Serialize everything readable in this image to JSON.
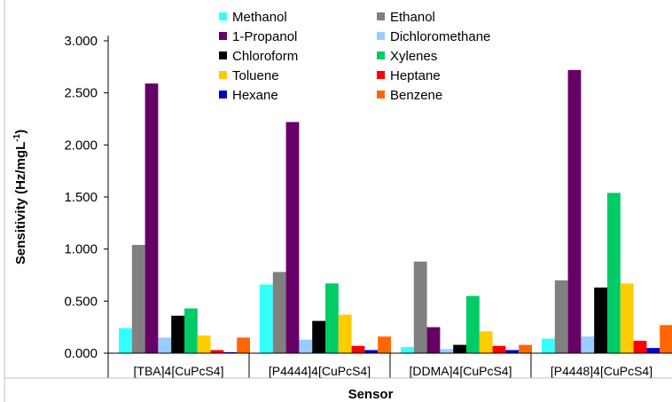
{
  "chart_data": {
    "type": "bar",
    "title": "",
    "xlabel": "Sensor",
    "ylabel": "Sensitivity (Hz/mgL",
    "ylabel_superscript": "-1",
    "ylabel_suffix": ")",
    "ylim": [
      0,
      3.0
    ],
    "yticks": [
      "0.000",
      "0.500",
      "1.000",
      "1.500",
      "2.000",
      "2.500",
      "3.000"
    ],
    "grid": false,
    "legend_position": "top-center",
    "categories": [
      "[TBA]4[CuPcS4]",
      "[P4444]4[CuPcS4]",
      "[DDMA]4[CuPcS4]",
      "[P4448]4[CuPcS4]"
    ],
    "series": [
      {
        "name": "Methanol",
        "color": "#33ffff",
        "values": [
          0.24,
          0.66,
          0.06,
          0.14
        ]
      },
      {
        "name": "Ethanol",
        "color": "#808080",
        "values": [
          1.04,
          0.78,
          0.88,
          0.7
        ]
      },
      {
        "name": "1-Propanol",
        "color": "#660066",
        "values": [
          2.59,
          2.22,
          0.25,
          2.72
        ]
      },
      {
        "name": "Dichloromethane",
        "color": "#99ccff",
        "values": [
          0.15,
          0.13,
          0.04,
          0.16
        ]
      },
      {
        "name": "Chloroform",
        "color": "#000000",
        "values": [
          0.36,
          0.31,
          0.08,
          0.63
        ]
      },
      {
        "name": "Xylenes",
        "color": "#00cc66",
        "values": [
          0.43,
          0.67,
          0.55,
          1.54
        ]
      },
      {
        "name": "Toluene",
        "color": "#ffcc00",
        "values": [
          0.17,
          0.37,
          0.21,
          0.67
        ]
      },
      {
        "name": "Heptane",
        "color": "#ff0000",
        "values": [
          0.03,
          0.07,
          0.07,
          0.12
        ]
      },
      {
        "name": "Hexane",
        "color": "#0000cc",
        "values": [
          0.01,
          0.03,
          0.03,
          0.05
        ]
      },
      {
        "name": "Benzene",
        "color": "#ff6600",
        "values": [
          0.15,
          0.16,
          0.08,
          0.27
        ]
      }
    ]
  }
}
